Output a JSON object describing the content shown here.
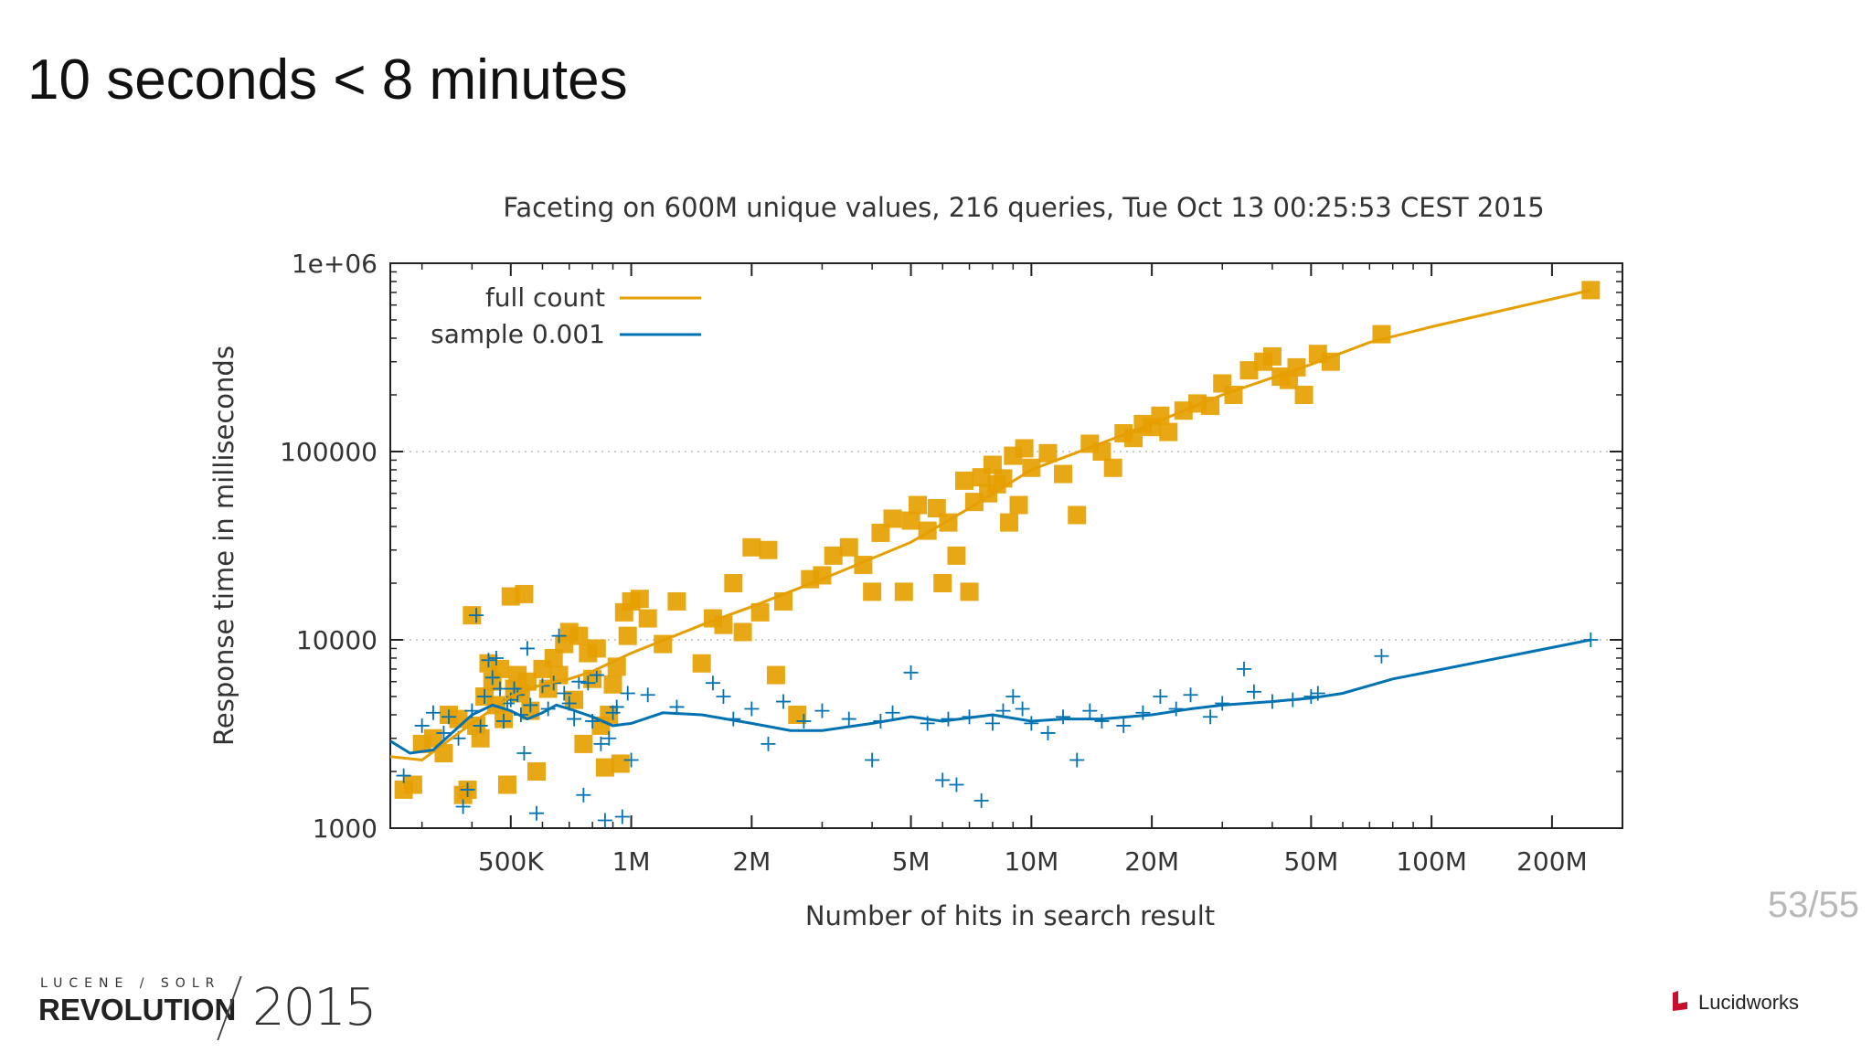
{
  "slide": {
    "title": "10 seconds < 8 minutes",
    "page_number": "53/55"
  },
  "logos": {
    "left_small": "LUCENE / SOLR",
    "left_big": "REVOLUTION",
    "left_year": "2015",
    "right": "Lucidworks"
  },
  "colors": {
    "full_count": "#e69f00",
    "sample": "#0072b2"
  },
  "chart_data": {
    "type": "scatter",
    "title": "Faceting on 600M unique values, 216 queries, Tue Oct 13 00:25:53 CEST 2015",
    "xlabel": "Number of hits in search result",
    "ylabel": "Response time in milliseconds",
    "xscale": "log",
    "yscale": "log",
    "xlim": [
      250000,
      300000000
    ],
    "ylim": [
      1000,
      1000000
    ],
    "xticks": [
      {
        "value": 500000,
        "label": "500K"
      },
      {
        "value": 1000000,
        "label": "1M"
      },
      {
        "value": 2000000,
        "label": "2M"
      },
      {
        "value": 5000000,
        "label": "5M"
      },
      {
        "value": 10000000,
        "label": "10M"
      },
      {
        "value": 20000000,
        "label": "20M"
      },
      {
        "value": 50000000,
        "label": "50M"
      },
      {
        "value": 100000000,
        "label": "100M"
      },
      {
        "value": 200000000,
        "label": "200M"
      }
    ],
    "yticks": [
      {
        "value": 1000,
        "label": "1000"
      },
      {
        "value": 10000,
        "label": "10000"
      },
      {
        "value": 100000,
        "label": "100000"
      },
      {
        "value": 1000000,
        "label": "1e+06"
      }
    ],
    "grid": "horizontal-dotted",
    "legend_position": "top-left",
    "series": [
      {
        "name": "full count",
        "marker": "square",
        "trend": [
          [
            250000,
            2400
          ],
          [
            300000,
            2300
          ],
          [
            400000,
            3600
          ],
          [
            500000,
            5000
          ],
          [
            600000,
            5800
          ],
          [
            700000,
            6200
          ],
          [
            800000,
            6800
          ],
          [
            1000000,
            8500
          ],
          [
            1500000,
            12000
          ],
          [
            2000000,
            15000
          ],
          [
            3000000,
            21000
          ],
          [
            5000000,
            33000
          ],
          [
            7000000,
            50000
          ],
          [
            10000000,
            80000
          ],
          [
            20000000,
            140000
          ],
          [
            30000000,
            200000
          ],
          [
            50000000,
            290000
          ],
          [
            70000000,
            380000
          ],
          [
            100000000,
            460000
          ],
          [
            250000000,
            720000
          ]
        ],
        "points": [
          [
            270000,
            1600
          ],
          [
            285000,
            1700
          ],
          [
            300000,
            2800
          ],
          [
            320000,
            3000
          ],
          [
            340000,
            2500
          ],
          [
            350000,
            4000
          ],
          [
            370000,
            3800
          ],
          [
            380000,
            1500
          ],
          [
            390000,
            1600
          ],
          [
            400000,
            13500
          ],
          [
            410000,
            3500
          ],
          [
            420000,
            3000
          ],
          [
            430000,
            5000
          ],
          [
            440000,
            7500
          ],
          [
            450000,
            6000
          ],
          [
            460000,
            4500
          ],
          [
            470000,
            7000
          ],
          [
            480000,
            3800
          ],
          [
            490000,
            1700
          ],
          [
            500000,
            17000
          ],
          [
            510000,
            5500
          ],
          [
            520000,
            6500
          ],
          [
            530000,
            5200
          ],
          [
            540000,
            17500
          ],
          [
            550000,
            6000
          ],
          [
            560000,
            4200
          ],
          [
            580000,
            2000
          ],
          [
            600000,
            7000
          ],
          [
            620000,
            5500
          ],
          [
            640000,
            8000
          ],
          [
            660000,
            6500
          ],
          [
            680000,
            9500
          ],
          [
            700000,
            11000
          ],
          [
            720000,
            4800
          ],
          [
            740000,
            10500
          ],
          [
            760000,
            2800
          ],
          [
            780000,
            8500
          ],
          [
            800000,
            6200
          ],
          [
            820000,
            9000
          ],
          [
            840000,
            3500
          ],
          [
            860000,
            2100
          ],
          [
            880000,
            4000
          ],
          [
            900000,
            5800
          ],
          [
            920000,
            7200
          ],
          [
            940000,
            2200
          ],
          [
            960000,
            14000
          ],
          [
            980000,
            10500
          ],
          [
            1000000,
            16000
          ],
          [
            1050000,
            16500
          ],
          [
            1100000,
            13000
          ],
          [
            1200000,
            9500
          ],
          [
            1300000,
            16000
          ],
          [
            1500000,
            7500
          ],
          [
            1600000,
            13000
          ],
          [
            1700000,
            12000
          ],
          [
            1800000,
            20000
          ],
          [
            1900000,
            11000
          ],
          [
            2000000,
            31000
          ],
          [
            2100000,
            14000
          ],
          [
            2200000,
            30000
          ],
          [
            2300000,
            6500
          ],
          [
            2400000,
            16000
          ],
          [
            2600000,
            4000
          ],
          [
            2800000,
            21000
          ],
          [
            3000000,
            22000
          ],
          [
            3200000,
            28000
          ],
          [
            3500000,
            31000
          ],
          [
            3800000,
            25000
          ],
          [
            4000000,
            18000
          ],
          [
            4200000,
            37000
          ],
          [
            4500000,
            44000
          ],
          [
            4800000,
            18000
          ],
          [
            5000000,
            43000
          ],
          [
            5200000,
            52000
          ],
          [
            5500000,
            38000
          ],
          [
            5800000,
            50000
          ],
          [
            6000000,
            20000
          ],
          [
            6200000,
            42000
          ],
          [
            6500000,
            28000
          ],
          [
            6800000,
            70000
          ],
          [
            7000000,
            18000
          ],
          [
            7200000,
            54000
          ],
          [
            7500000,
            73000
          ],
          [
            7800000,
            60000
          ],
          [
            8000000,
            85000
          ],
          [
            8200000,
            67000
          ],
          [
            8500000,
            72000
          ],
          [
            8800000,
            42000
          ],
          [
            9000000,
            95000
          ],
          [
            9300000,
            52000
          ],
          [
            9600000,
            104000
          ],
          [
            10000000,
            82000
          ],
          [
            11000000,
            98000
          ],
          [
            12000000,
            76000
          ],
          [
            13000000,
            46000
          ],
          [
            14000000,
            110000
          ],
          [
            15000000,
            100000
          ],
          [
            16000000,
            82000
          ],
          [
            17000000,
            125000
          ],
          [
            18000000,
            118000
          ],
          [
            19000000,
            140000
          ],
          [
            20000000,
            135000
          ],
          [
            21000000,
            155000
          ],
          [
            22000000,
            127000
          ],
          [
            24000000,
            165000
          ],
          [
            26000000,
            180000
          ],
          [
            28000000,
            175000
          ],
          [
            30000000,
            230000
          ],
          [
            32000000,
            200000
          ],
          [
            35000000,
            270000
          ],
          [
            38000000,
            300000
          ],
          [
            40000000,
            320000
          ],
          [
            42000000,
            250000
          ],
          [
            44000000,
            240000
          ],
          [
            46000000,
            280000
          ],
          [
            48000000,
            200000
          ],
          [
            52000000,
            330000
          ],
          [
            56000000,
            300000
          ],
          [
            75000000,
            420000
          ],
          [
            250000000,
            720000
          ]
        ]
      },
      {
        "name": "sample 0.001",
        "marker": "plus",
        "trend": [
          [
            250000,
            2900
          ],
          [
            280000,
            2500
          ],
          [
            320000,
            2600
          ],
          [
            400000,
            4000
          ],
          [
            450000,
            4500
          ],
          [
            500000,
            4200
          ],
          [
            550000,
            3800
          ],
          [
            600000,
            4100
          ],
          [
            650000,
            4500
          ],
          [
            700000,
            4300
          ],
          [
            800000,
            3900
          ],
          [
            900000,
            3500
          ],
          [
            1000000,
            3600
          ],
          [
            1200000,
            4100
          ],
          [
            1500000,
            4000
          ],
          [
            2000000,
            3600
          ],
          [
            2500000,
            3300
          ],
          [
            3000000,
            3300
          ],
          [
            4000000,
            3600
          ],
          [
            5000000,
            3900
          ],
          [
            6000000,
            3700
          ],
          [
            8000000,
            4000
          ],
          [
            10000000,
            3700
          ],
          [
            12000000,
            3800
          ],
          [
            15000000,
            3800
          ],
          [
            20000000,
            4000
          ],
          [
            25000000,
            4300
          ],
          [
            30000000,
            4500
          ],
          [
            40000000,
            4700
          ],
          [
            50000000,
            4900
          ],
          [
            60000000,
            5200
          ],
          [
            80000000,
            6200
          ],
          [
            100000000,
            6800
          ],
          [
            250000000,
            10000
          ]
        ],
        "points": [
          [
            270000,
            1900
          ],
          [
            300000,
            3500
          ],
          [
            320000,
            4100
          ],
          [
            340000,
            3200
          ],
          [
            350000,
            3900
          ],
          [
            370000,
            3000
          ],
          [
            380000,
            1300
          ],
          [
            390000,
            1600
          ],
          [
            400000,
            4200
          ],
          [
            410000,
            13500
          ],
          [
            420000,
            3500
          ],
          [
            430000,
            5000
          ],
          [
            440000,
            7800
          ],
          [
            450000,
            6300
          ],
          [
            460000,
            8000
          ],
          [
            470000,
            5500
          ],
          [
            480000,
            3700
          ],
          [
            490000,
            4600
          ],
          [
            500000,
            4800
          ],
          [
            510000,
            5500
          ],
          [
            520000,
            5100
          ],
          [
            530000,
            4000
          ],
          [
            540000,
            2500
          ],
          [
            550000,
            9000
          ],
          [
            560000,
            4500
          ],
          [
            580000,
            1200
          ],
          [
            600000,
            5700
          ],
          [
            620000,
            4300
          ],
          [
            640000,
            5900
          ],
          [
            660000,
            10500
          ],
          [
            680000,
            5200
          ],
          [
            700000,
            4600
          ],
          [
            720000,
            3800
          ],
          [
            740000,
            6000
          ],
          [
            760000,
            1500
          ],
          [
            780000,
            5900
          ],
          [
            800000,
            3700
          ],
          [
            820000,
            6500
          ],
          [
            840000,
            2800
          ],
          [
            860000,
            1100
          ],
          [
            880000,
            3000
          ],
          [
            900000,
            4100
          ],
          [
            920000,
            4400
          ],
          [
            950000,
            1150
          ],
          [
            980000,
            5200
          ],
          [
            1000000,
            2300
          ],
          [
            1100000,
            5100
          ],
          [
            1300000,
            4400
          ],
          [
            1600000,
            5900
          ],
          [
            1700000,
            5000
          ],
          [
            1800000,
            3800
          ],
          [
            2000000,
            4300
          ],
          [
            2200000,
            2800
          ],
          [
            2400000,
            4700
          ],
          [
            2700000,
            3700
          ],
          [
            3000000,
            4200
          ],
          [
            3500000,
            3800
          ],
          [
            4000000,
            2300
          ],
          [
            4200000,
            3700
          ],
          [
            4500000,
            4100
          ],
          [
            5000000,
            6700
          ],
          [
            5500000,
            3600
          ],
          [
            6000000,
            1800
          ],
          [
            6200000,
            3800
          ],
          [
            6500000,
            1700
          ],
          [
            7000000,
            3900
          ],
          [
            7500000,
            1400
          ],
          [
            8000000,
            3600
          ],
          [
            8500000,
            4200
          ],
          [
            9000000,
            5000
          ],
          [
            9500000,
            4300
          ],
          [
            10000000,
            3600
          ],
          [
            11000000,
            3200
          ],
          [
            12000000,
            3900
          ],
          [
            13000000,
            2300
          ],
          [
            14000000,
            4200
          ],
          [
            15000000,
            3700
          ],
          [
            17000000,
            3500
          ],
          [
            19000000,
            4100
          ],
          [
            21000000,
            5000
          ],
          [
            23000000,
            4300
          ],
          [
            25000000,
            5100
          ],
          [
            28000000,
            3900
          ],
          [
            30000000,
            4600
          ],
          [
            34000000,
            7000
          ],
          [
            36000000,
            5300
          ],
          [
            40000000,
            4700
          ],
          [
            45000000,
            4800
          ],
          [
            50000000,
            5000
          ],
          [
            52000000,
            5200
          ],
          [
            75000000,
            8200
          ],
          [
            250000000,
            10000
          ]
        ]
      }
    ]
  }
}
